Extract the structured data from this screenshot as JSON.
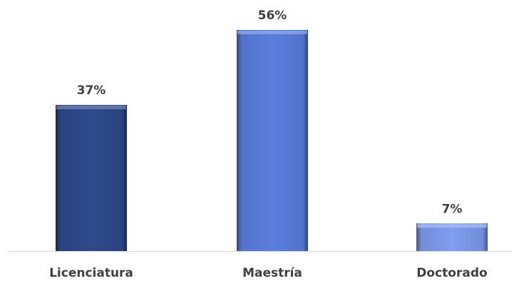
{
  "chart_data": {
    "type": "bar",
    "categories": [
      "Licenciatura",
      "Maestría",
      "Doctorado"
    ],
    "values": [
      37,
      56,
      7
    ],
    "value_labels": [
      "37%",
      "56%",
      "7%"
    ],
    "unit": "%",
    "ylim": [
      0,
      56
    ],
    "grid": false,
    "legend": "none",
    "colors": [
      "#2e4a8c",
      "#5b7fdf",
      "#7f9ef0"
    ]
  }
}
